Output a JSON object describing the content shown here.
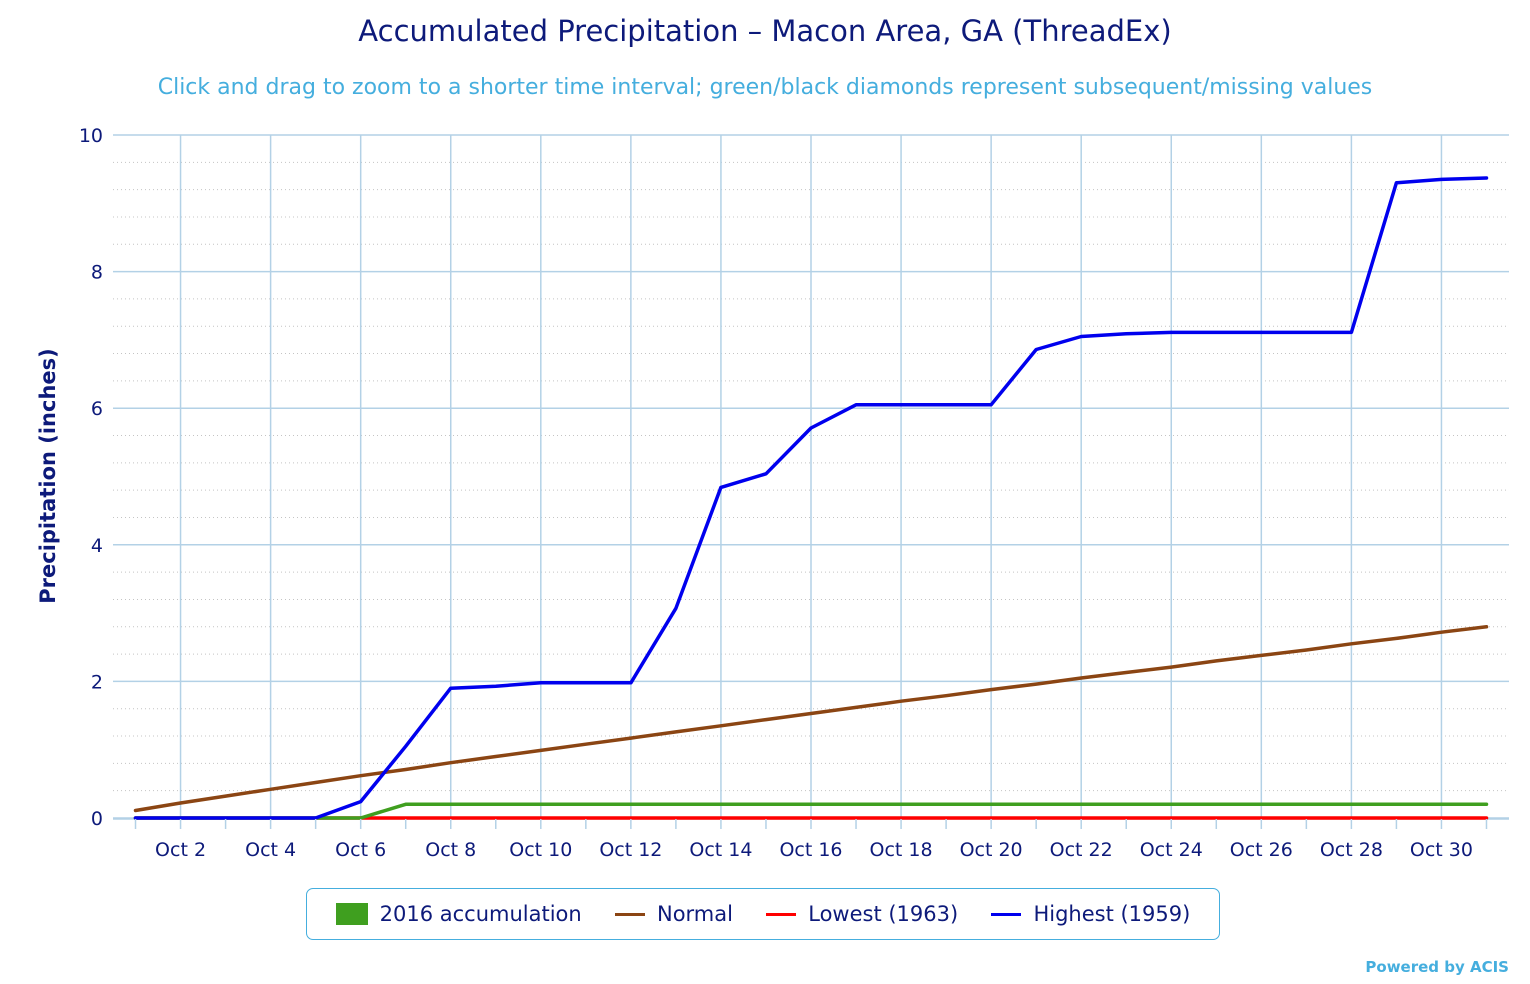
{
  "colors": {
    "text": "#0d1a7a",
    "accent": "#45aede",
    "grid": "#b3d1e6",
    "minor_grid": "#c4c4c4"
  },
  "chart_data": {
    "type": "line",
    "title": "Accumulated Precipitation – Macon Area, GA (ThreadEx)",
    "subtitle": "Click and drag to zoom to a shorter time interval; green/black diamonds represent subsequent/missing values",
    "ylabel": "Precipitation (inches)",
    "xlabel": "",
    "ylim": [
      0,
      10
    ],
    "y_ticks": [
      "0",
      "2",
      "4",
      "6",
      "8",
      "10"
    ],
    "x_ticks": [
      "Oct 2",
      "Oct 4",
      "Oct 6",
      "Oct 8",
      "Oct 10",
      "Oct 12",
      "Oct 14",
      "Oct 16",
      "Oct 18",
      "Oct 20",
      "Oct 22",
      "Oct 24",
      "Oct 26",
      "Oct 28",
      "Oct 30"
    ],
    "x_days": [
      1,
      2,
      3,
      4,
      5,
      6,
      7,
      8,
      9,
      10,
      11,
      12,
      13,
      14,
      15,
      16,
      17,
      18,
      19,
      20,
      21,
      22,
      23,
      24,
      25,
      26,
      27,
      28,
      29,
      30,
      31
    ],
    "grid": true,
    "legend_position": "bottom",
    "series": [
      {
        "name": "2016 accumulation",
        "color": "#3f9f1f",
        "symbol": "box",
        "x": [
          1,
          2,
          3,
          4,
          5,
          6,
          7,
          8,
          9,
          10,
          11,
          12,
          13,
          14,
          15,
          16,
          17,
          18,
          19,
          20,
          21,
          22,
          23,
          24,
          25,
          26,
          27,
          28,
          29,
          30,
          31
        ],
        "values": [
          0,
          0,
          0,
          0,
          0,
          0,
          0.2,
          0.2,
          0.2,
          0.2,
          0.2,
          0.2,
          0.2,
          0.2,
          0.2,
          0.2,
          0.2,
          0.2,
          0.2,
          0.2,
          0.2,
          0.2,
          0.2,
          0.2,
          0.2,
          0.2,
          0.2,
          0.2,
          0.2,
          0.2,
          0.2
        ]
      },
      {
        "name": "Normal",
        "color": "#8b4513",
        "symbol": "line",
        "x": [
          1,
          2,
          3,
          4,
          5,
          6,
          7,
          8,
          9,
          10,
          11,
          12,
          13,
          14,
          15,
          16,
          17,
          18,
          19,
          20,
          21,
          22,
          23,
          24,
          25,
          26,
          27,
          28,
          29,
          30,
          31
        ],
        "values": [
          0.11,
          0.22,
          0.32,
          0.42,
          0.52,
          0.62,
          0.71,
          0.81,
          0.9,
          0.99,
          1.08,
          1.17,
          1.26,
          1.35,
          1.44,
          1.53,
          1.62,
          1.71,
          1.79,
          1.88,
          1.96,
          2.05,
          2.13,
          2.21,
          2.3,
          2.38,
          2.46,
          2.55,
          2.63,
          2.72,
          2.8
        ]
      },
      {
        "name": "Lowest (1963)",
        "color": "#ff0000",
        "symbol": "line",
        "x": [
          1,
          2,
          3,
          4,
          5,
          6,
          7,
          8,
          9,
          10,
          11,
          12,
          13,
          14,
          15,
          16,
          17,
          18,
          19,
          20,
          21,
          22,
          23,
          24,
          25,
          26,
          27,
          28,
          29,
          30,
          31
        ],
        "values": [
          0,
          0,
          0,
          0,
          0,
          0,
          0,
          0,
          0,
          0,
          0,
          0,
          0,
          0,
          0,
          0,
          0,
          0,
          0,
          0,
          0,
          0,
          0,
          0,
          0,
          0,
          0,
          0,
          0,
          0,
          0
        ]
      },
      {
        "name": "Highest (1959)",
        "color": "#0000ee",
        "symbol": "line",
        "x": [
          1,
          2,
          3,
          4,
          5,
          6,
          7,
          8,
          9,
          10,
          11,
          12,
          13,
          14,
          15,
          16,
          17,
          18,
          19,
          20,
          21,
          22,
          23,
          24,
          25,
          26,
          27,
          28,
          29,
          30,
          31
        ],
        "values": [
          0,
          0,
          0,
          0,
          0,
          0.24,
          1.05,
          1.9,
          1.93,
          1.98,
          1.98,
          1.98,
          3.07,
          4.84,
          5.04,
          5.71,
          6.05,
          6.05,
          6.05,
          6.05,
          6.86,
          7.05,
          7.09,
          7.11,
          7.11,
          7.11,
          7.11,
          7.11,
          9.3,
          9.35,
          9.37
        ]
      }
    ]
  },
  "footer": {
    "credit": "Powered by ACIS"
  }
}
